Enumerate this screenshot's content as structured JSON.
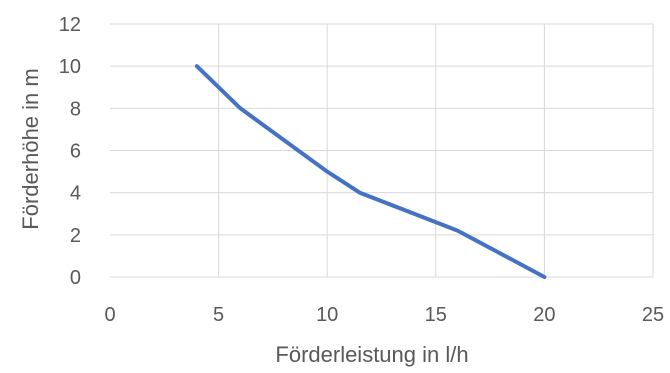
{
  "chart_data": {
    "type": "line",
    "title": "",
    "xlabel": "Förderleistung in l/h",
    "ylabel": "Förderhöhe in m",
    "xlim": [
      0,
      25
    ],
    "ylim": [
      0,
      12
    ],
    "x_ticks": [
      0,
      5,
      10,
      15,
      20,
      25
    ],
    "y_ticks": [
      0,
      2,
      4,
      6,
      8,
      10,
      12
    ],
    "grid": true,
    "legend": "none",
    "series": [
      {
        "color": "#4472c4",
        "x": [
          4,
          6,
          8,
          10,
          11.5,
          14,
          16,
          18,
          20
        ],
        "y": [
          10,
          8,
          6.5,
          5,
          4,
          3,
          2.2,
          1.1,
          0
        ]
      }
    ]
  }
}
